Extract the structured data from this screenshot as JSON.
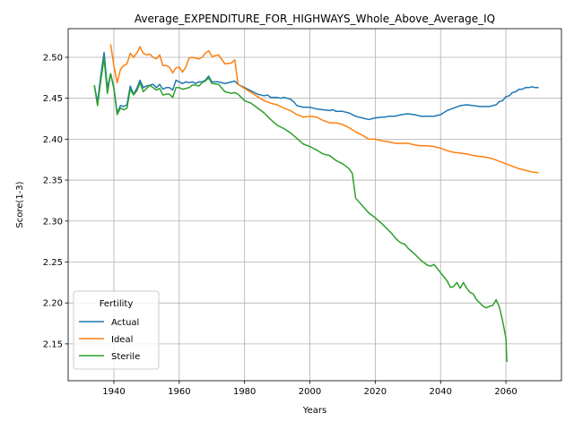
{
  "chart_data": {
    "type": "line",
    "title": "Average_EXPENDITURE_FOR_HIGHWAYS_Whole_Above_Average_IQ",
    "xlabel": "Years",
    "ylabel": "Score(1-3)",
    "xlim": [
      1926,
      2077
    ],
    "ylim": [
      2.105,
      2.535
    ],
    "xticks": [
      1940,
      1960,
      1980,
      2000,
      2020,
      2040,
      2060
    ],
    "yticks": [
      2.15,
      2.2,
      2.25,
      2.3,
      2.35,
      2.4,
      2.45,
      2.5
    ],
    "grid": true,
    "legend": {
      "title": "Fertility",
      "placement": "lower-left"
    },
    "series": [
      {
        "name": "Actual",
        "color": "#1f77b4",
        "points": [
          [
            1934,
            2.466
          ],
          [
            1935,
            2.445
          ],
          [
            1936,
            2.478
          ],
          [
            1937,
            2.506
          ],
          [
            1938,
            2.462
          ],
          [
            1939,
            2.48
          ],
          [
            1940,
            2.462
          ],
          [
            1941,
            2.432
          ],
          [
            1942,
            2.441
          ],
          [
            1943,
            2.44
          ],
          [
            1944,
            2.442
          ],
          [
            1945,
            2.465
          ],
          [
            1946,
            2.455
          ],
          [
            1947,
            2.462
          ],
          [
            1948,
            2.472
          ],
          [
            1949,
            2.463
          ],
          [
            1950,
            2.465
          ],
          [
            1951,
            2.466
          ],
          [
            1952,
            2.467
          ],
          [
            1953,
            2.463
          ],
          [
            1954,
            2.467
          ],
          [
            1955,
            2.461
          ],
          [
            1956,
            2.463
          ],
          [
            1957,
            2.463
          ],
          [
            1958,
            2.46
          ],
          [
            1959,
            2.472
          ],
          [
            1960,
            2.47
          ],
          [
            1961,
            2.468
          ],
          [
            1962,
            2.47
          ],
          [
            1963,
            2.469
          ],
          [
            1964,
            2.47
          ],
          [
            1965,
            2.468
          ],
          [
            1966,
            2.47
          ],
          [
            1967,
            2.47
          ],
          [
            1968,
            2.472
          ],
          [
            1969,
            2.477
          ],
          [
            1970,
            2.47
          ],
          [
            1972,
            2.47
          ],
          [
            1974,
            2.468
          ],
          [
            1976,
            2.47
          ],
          [
            1977,
            2.471
          ],
          [
            1978,
            2.467
          ],
          [
            1980,
            2.463
          ],
          [
            1982,
            2.459
          ],
          [
            1984,
            2.455
          ],
          [
            1986,
            2.453
          ],
          [
            1987,
            2.454
          ],
          [
            1988,
            2.451
          ],
          [
            1990,
            2.451
          ],
          [
            1991,
            2.45
          ],
          [
            1992,
            2.451
          ],
          [
            1994,
            2.449
          ],
          [
            1995,
            2.446
          ],
          [
            1996,
            2.441
          ],
          [
            1998,
            2.439
          ],
          [
            2000,
            2.439
          ],
          [
            2002,
            2.437
          ],
          [
            2004,
            2.436
          ],
          [
            2006,
            2.435
          ],
          [
            2007,
            2.436
          ],
          [
            2008,
            2.434
          ],
          [
            2010,
            2.434
          ],
          [
            2012,
            2.432
          ],
          [
            2014,
            2.428
          ],
          [
            2016,
            2.426
          ],
          [
            2018,
            2.424
          ],
          [
            2020,
            2.426
          ],
          [
            2022,
            2.427
          ],
          [
            2023,
            2.427
          ],
          [
            2024,
            2.428
          ],
          [
            2026,
            2.428
          ],
          [
            2028,
            2.43
          ],
          [
            2030,
            2.431
          ],
          [
            2032,
            2.43
          ],
          [
            2034,
            2.428
          ],
          [
            2036,
            2.428
          ],
          [
            2038,
            2.428
          ],
          [
            2040,
            2.43
          ],
          [
            2042,
            2.435
          ],
          [
            2044,
            2.438
          ],
          [
            2046,
            2.441
          ],
          [
            2048,
            2.442
          ],
          [
            2050,
            2.441
          ],
          [
            2052,
            2.44
          ],
          [
            2054,
            2.44
          ],
          [
            2055,
            2.44
          ],
          [
            2056,
            2.441
          ],
          [
            2057,
            2.442
          ],
          [
            2058,
            2.446
          ],
          [
            2059,
            2.447
          ],
          [
            2060,
            2.452
          ],
          [
            2061,
            2.453
          ],
          [
            2062,
            2.457
          ],
          [
            2063,
            2.458
          ],
          [
            2064,
            2.461
          ],
          [
            2065,
            2.461
          ],
          [
            2066,
            2.463
          ],
          [
            2067,
            2.463
          ],
          [
            2068,
            2.464
          ],
          [
            2069,
            2.463
          ],
          [
            2070,
            2.463
          ]
        ]
      },
      {
        "name": "Ideal",
        "color": "#ff7f0e",
        "points": [
          [
            1939,
            2.516
          ],
          [
            1940,
            2.49
          ],
          [
            1941,
            2.469
          ],
          [
            1942,
            2.485
          ],
          [
            1943,
            2.49
          ],
          [
            1944,
            2.492
          ],
          [
            1945,
            2.505
          ],
          [
            1946,
            2.5
          ],
          [
            1947,
            2.505
          ],
          [
            1948,
            2.513
          ],
          [
            1949,
            2.505
          ],
          [
            1950,
            2.503
          ],
          [
            1951,
            2.504
          ],
          [
            1952,
            2.5
          ],
          [
            1953,
            2.498
          ],
          [
            1954,
            2.503
          ],
          [
            1955,
            2.49
          ],
          [
            1956,
            2.49
          ],
          [
            1957,
            2.488
          ],
          [
            1958,
            2.481
          ],
          [
            1959,
            2.487
          ],
          [
            1960,
            2.488
          ],
          [
            1961,
            2.482
          ],
          [
            1962,
            2.488
          ],
          [
            1963,
            2.499
          ],
          [
            1964,
            2.5
          ],
          [
            1965,
            2.499
          ],
          [
            1966,
            2.498
          ],
          [
            1967,
            2.5
          ],
          [
            1968,
            2.505
          ],
          [
            1969,
            2.508
          ],
          [
            1970,
            2.501
          ],
          [
            1972,
            2.503
          ],
          [
            1974,
            2.492
          ],
          [
            1976,
            2.493
          ],
          [
            1977,
            2.497
          ],
          [
            1978,
            2.467
          ],
          [
            1980,
            2.462
          ],
          [
            1982,
            2.457
          ],
          [
            1984,
            2.452
          ],
          [
            1986,
            2.447
          ],
          [
            1988,
            2.444
          ],
          [
            1990,
            2.442
          ],
          [
            1992,
            2.438
          ],
          [
            1994,
            2.435
          ],
          [
            1996,
            2.43
          ],
          [
            1998,
            2.427
          ],
          [
            2000,
            2.428
          ],
          [
            2002,
            2.427
          ],
          [
            2004,
            2.423
          ],
          [
            2006,
            2.42
          ],
          [
            2008,
            2.42
          ],
          [
            2010,
            2.418
          ],
          [
            2012,
            2.414
          ],
          [
            2014,
            2.409
          ],
          [
            2016,
            2.405
          ],
          [
            2018,
            2.4
          ],
          [
            2020,
            2.4
          ],
          [
            2022,
            2.398
          ],
          [
            2024,
            2.397
          ],
          [
            2026,
            2.395
          ],
          [
            2028,
            2.395
          ],
          [
            2030,
            2.395
          ],
          [
            2032,
            2.393
          ],
          [
            2034,
            2.392
          ],
          [
            2036,
            2.392
          ],
          [
            2038,
            2.391
          ],
          [
            2040,
            2.389
          ],
          [
            2042,
            2.386
          ],
          [
            2044,
            2.384
          ],
          [
            2046,
            2.383
          ],
          [
            2048,
            2.382
          ],
          [
            2050,
            2.38
          ],
          [
            2052,
            2.379
          ],
          [
            2054,
            2.378
          ],
          [
            2056,
            2.376
          ],
          [
            2058,
            2.373
          ],
          [
            2060,
            2.37
          ],
          [
            2062,
            2.367
          ],
          [
            2064,
            2.364
          ],
          [
            2066,
            2.362
          ],
          [
            2068,
            2.36
          ],
          [
            2070,
            2.359
          ]
        ]
      },
      {
        "name": "Sterile",
        "color": "#2ca02c",
        "points": [
          [
            1934,
            2.466
          ],
          [
            1935,
            2.441
          ],
          [
            1936,
            2.472
          ],
          [
            1937,
            2.499
          ],
          [
            1938,
            2.456
          ],
          [
            1939,
            2.48
          ],
          [
            1940,
            2.463
          ],
          [
            1941,
            2.43
          ],
          [
            1942,
            2.438
          ],
          [
            1943,
            2.436
          ],
          [
            1944,
            2.438
          ],
          [
            1945,
            2.461
          ],
          [
            1946,
            2.454
          ],
          [
            1947,
            2.459
          ],
          [
            1948,
            2.469
          ],
          [
            1949,
            2.458
          ],
          [
            1950,
            2.462
          ],
          [
            1951,
            2.466
          ],
          [
            1952,
            2.463
          ],
          [
            1953,
            2.46
          ],
          [
            1954,
            2.462
          ],
          [
            1955,
            2.454
          ],
          [
            1956,
            2.455
          ],
          [
            1957,
            2.455
          ],
          [
            1958,
            2.451
          ],
          [
            1959,
            2.463
          ],
          [
            1960,
            2.463
          ],
          [
            1961,
            2.461
          ],
          [
            1962,
            2.462
          ],
          [
            1963,
            2.463
          ],
          [
            1964,
            2.466
          ],
          [
            1965,
            2.466
          ],
          [
            1966,
            2.465
          ],
          [
            1967,
            2.469
          ],
          [
            1968,
            2.471
          ],
          [
            1969,
            2.475
          ],
          [
            1970,
            2.468
          ],
          [
            1972,
            2.467
          ],
          [
            1974,
            2.458
          ],
          [
            1976,
            2.456
          ],
          [
            1977,
            2.457
          ],
          [
            1978,
            2.455
          ],
          [
            1980,
            2.447
          ],
          [
            1982,
            2.444
          ],
          [
            1984,
            2.438
          ],
          [
            1986,
            2.432
          ],
          [
            1988,
            2.424
          ],
          [
            1990,
            2.417
          ],
          [
            1992,
            2.413
          ],
          [
            1994,
            2.408
          ],
          [
            1996,
            2.401
          ],
          [
            1998,
            2.394
          ],
          [
            2000,
            2.391
          ],
          [
            2002,
            2.387
          ],
          [
            2004,
            2.382
          ],
          [
            2006,
            2.38
          ],
          [
            2008,
            2.374
          ],
          [
            2010,
            2.37
          ],
          [
            2012,
            2.364
          ],
          [
            2013,
            2.358
          ],
          [
            2014,
            2.328
          ],
          [
            2016,
            2.319
          ],
          [
            2018,
            2.31
          ],
          [
            2020,
            2.304
          ],
          [
            2022,
            2.297
          ],
          [
            2024,
            2.289
          ],
          [
            2025,
            2.285
          ],
          [
            2026,
            2.28
          ],
          [
            2027,
            2.276
          ],
          [
            2028,
            2.273
          ],
          [
            2029,
            2.272
          ],
          [
            2030,
            2.267
          ],
          [
            2032,
            2.26
          ],
          [
            2034,
            2.252
          ],
          [
            2036,
            2.246
          ],
          [
            2037,
            2.245
          ],
          [
            2038,
            2.247
          ],
          [
            2039,
            2.242
          ],
          [
            2040,
            2.237
          ],
          [
            2042,
            2.227
          ],
          [
            2043,
            2.219
          ],
          [
            2044,
            2.22
          ],
          [
            2045,
            2.225
          ],
          [
            2046,
            2.218
          ],
          [
            2047,
            2.225
          ],
          [
            2048,
            2.218
          ],
          [
            2049,
            2.213
          ],
          [
            2050,
            2.211
          ],
          [
            2051,
            2.204
          ],
          [
            2052,
            2.2
          ],
          [
            2053,
            2.196
          ],
          [
            2054,
            2.194
          ],
          [
            2055,
            2.196
          ],
          [
            2056,
            2.197
          ],
          [
            2057,
            2.204
          ],
          [
            2058,
            2.195
          ],
          [
            2059,
            2.178
          ],
          [
            2060,
            2.157
          ],
          [
            2060.3,
            2.128
          ]
        ]
      }
    ]
  }
}
